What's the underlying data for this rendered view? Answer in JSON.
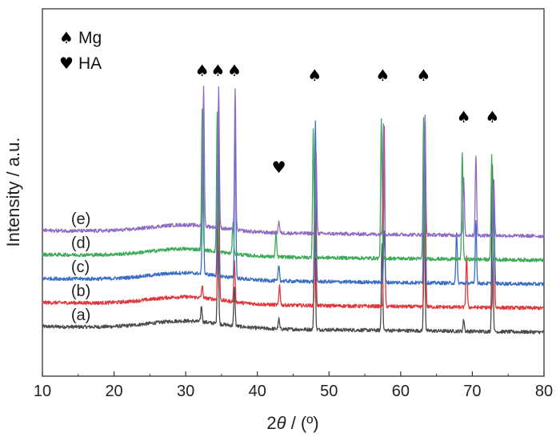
{
  "chart_data": {
    "type": "line",
    "xlabel_prefix": "2",
    "xlabel_theta": "θ",
    "xlabel_suffix": " / (º)",
    "ylabel": "Intensity / a.u.",
    "xlim": [
      10,
      80
    ],
    "x_ticks": [
      "10",
      "20",
      "30",
      "40",
      "50",
      "60",
      "70",
      "80"
    ],
    "grid": false,
    "legend": {
      "position": "top-left",
      "entries": [
        {
          "symbol": "♠",
          "label": "Mg"
        },
        {
          "symbol": "♥",
          "label": "HA"
        }
      ]
    },
    "peak_markers": [
      {
        "x": 32.3,
        "symbol": "♠",
        "phase": "Mg"
      },
      {
        "x": 34.5,
        "symbol": "♠",
        "phase": "Mg"
      },
      {
        "x": 36.8,
        "symbol": "♠",
        "phase": "Mg"
      },
      {
        "x": 43.0,
        "symbol": "♥",
        "phase": "HA"
      },
      {
        "x": 48.0,
        "symbol": "♠",
        "phase": "Mg"
      },
      {
        "x": 57.5,
        "symbol": "♠",
        "phase": "Mg"
      },
      {
        "x": 63.2,
        "symbol": "♠",
        "phase": "Mg"
      },
      {
        "x": 68.8,
        "symbol": "♠",
        "phase": "Mg"
      },
      {
        "x": 72.8,
        "symbol": "♠",
        "phase": "Mg"
      }
    ],
    "series": [
      {
        "label": "(a)",
        "color": "#4a4a4a",
        "baseline": 0.0,
        "peaks": [
          [
            32.2,
            0.4
          ],
          [
            34.5,
            2.6
          ],
          [
            36.8,
            1.0
          ],
          [
            43.0,
            0.25
          ],
          [
            48.0,
            3.6
          ],
          [
            57.4,
            2.2
          ],
          [
            63.3,
            3.9
          ],
          [
            68.8,
            0.3
          ],
          [
            72.8,
            4.2
          ]
        ]
      },
      {
        "label": "(b)",
        "color": "#e0353a",
        "baseline": 0.6,
        "peaks": [
          [
            32.3,
            0.3
          ],
          [
            34.6,
            3.9
          ],
          [
            36.8,
            1.0
          ],
          [
            43.1,
            0.5
          ],
          [
            48.1,
            2.5
          ],
          [
            57.7,
            4.5
          ],
          [
            63.4,
            4.5
          ],
          [
            69.2,
            1.3
          ],
          [
            73.0,
            3.1
          ]
        ]
      },
      {
        "label": "(c)",
        "color": "#3b6dc4",
        "baseline": 1.2,
        "peaks": [
          [
            32.4,
            4.0
          ],
          [
            34.5,
            4.0
          ],
          [
            36.9,
            3.9
          ],
          [
            43.0,
            0.4
          ],
          [
            48.1,
            4.0
          ],
          [
            57.7,
            1.3
          ],
          [
            63.3,
            4.0
          ],
          [
            67.8,
            1.3
          ],
          [
            70.5,
            1.6
          ],
          [
            73.0,
            2.1
          ]
        ]
      },
      {
        "label": "(d)",
        "color": "#3caa58",
        "baseline": 1.8,
        "peaks": [
          [
            32.3,
            3.5
          ],
          [
            34.4,
            3.5
          ],
          [
            36.6,
            0.8
          ],
          [
            42.6,
            0.6
          ],
          [
            47.8,
            3.2
          ],
          [
            57.3,
            3.5
          ],
          [
            63.2,
            3.5
          ],
          [
            68.6,
            2.7
          ],
          [
            72.7,
            2.6
          ]
        ]
      },
      {
        "label": "(e)",
        "color": "#8e6cc0",
        "baseline": 2.4,
        "peaks": [
          [
            32.5,
            3.5
          ],
          [
            34.6,
            3.5
          ],
          [
            36.9,
            3.5
          ],
          [
            43.0,
            0.3
          ],
          [
            48.2,
            2.0
          ],
          [
            57.6,
            2.8
          ],
          [
            63.4,
            3.0
          ],
          [
            68.8,
            1.4
          ],
          [
            70.5,
            2.0
          ],
          [
            73.0,
            1.4
          ]
        ]
      }
    ]
  }
}
